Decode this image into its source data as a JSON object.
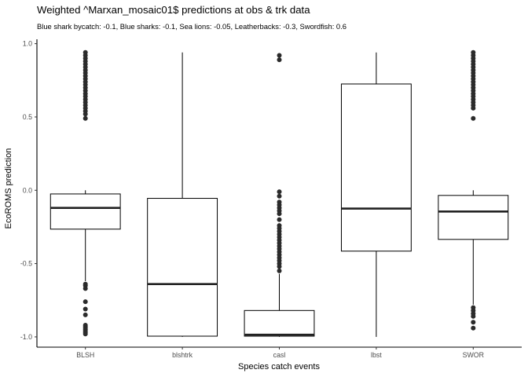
{
  "chart_data": {
    "type": "boxplot",
    "title": "Weighted ^Marxan_mosaic01$ predictions at obs & trk data",
    "subtitle": "Blue shark bycatch: -0.1, Blue sharks: -0.1, Sea lions: -0.05, Leatherbacks: -0.3, Swordfish: 0.6",
    "xlabel": "Species catch events",
    "ylabel": "EcoROMS prediction",
    "ylim": [
      -1.07,
      1.03
    ],
    "yticks": [
      -1.0,
      -0.5,
      0.0,
      0.5,
      1.0
    ],
    "ytick_labels": [
      "-1.0",
      "-0.5",
      "0.0",
      "0.5",
      "1.0"
    ],
    "categories": [
      "BLSH",
      "blshtrk",
      "casl",
      "lbst",
      "SWOR"
    ],
    "boxes": [
      {
        "category": "BLSH",
        "whisker_low": -0.62,
        "q1": -0.265,
        "median": -0.12,
        "q3": -0.025,
        "whisker_high": 0.0,
        "outliers": [
          0.94,
          0.92,
          0.9,
          0.88,
          0.86,
          0.84,
          0.82,
          0.8,
          0.78,
          0.76,
          0.74,
          0.72,
          0.7,
          0.68,
          0.66,
          0.64,
          0.62,
          0.6,
          0.58,
          0.56,
          0.54,
          0.52,
          0.49,
          -0.64,
          -0.65,
          -0.67,
          -0.76,
          -0.81,
          -0.85,
          -0.92,
          -0.93,
          -0.94,
          -0.95,
          -0.96,
          -0.97,
          -0.98
        ]
      },
      {
        "category": "blshtrk",
        "whisker_low": -1.0,
        "q1": -0.995,
        "median": -0.64,
        "q3": -0.055,
        "whisker_high": 0.94,
        "outliers": []
      },
      {
        "category": "casl",
        "whisker_low": -1.0,
        "q1": -0.995,
        "median": -0.985,
        "q3": -0.82,
        "whisker_high": -0.57,
        "outliers": [
          0.92,
          0.89,
          -0.01,
          -0.04,
          -0.08,
          -0.1,
          -0.12,
          -0.14,
          -0.16,
          -0.2,
          -0.24,
          -0.26,
          -0.28,
          -0.3,
          -0.32,
          -0.34,
          -0.36,
          -0.38,
          -0.4,
          -0.42,
          -0.44,
          -0.46,
          -0.48,
          -0.5,
          -0.52,
          -0.55
        ]
      },
      {
        "category": "lbst",
        "whisker_low": -1.0,
        "q1": -0.415,
        "median": -0.125,
        "q3": 0.725,
        "whisker_high": 0.94,
        "outliers": []
      },
      {
        "category": "SWOR",
        "whisker_low": -0.78,
        "q1": -0.335,
        "median": -0.145,
        "q3": -0.035,
        "whisker_high": 0.0,
        "outliers": [
          0.94,
          0.92,
          0.9,
          0.88,
          0.86,
          0.84,
          0.82,
          0.8,
          0.78,
          0.76,
          0.74,
          0.72,
          0.7,
          0.68,
          0.66,
          0.64,
          0.62,
          0.6,
          0.58,
          0.56,
          0.49,
          -0.8,
          -0.82,
          -0.84,
          -0.86,
          -0.9,
          -0.94
        ]
      }
    ],
    "grid": false,
    "legend": "none",
    "colors": {
      "box_fill": "#ffffff",
      "line": "#000000",
      "median": "#222222",
      "outlier": "#2b2b2b"
    }
  }
}
